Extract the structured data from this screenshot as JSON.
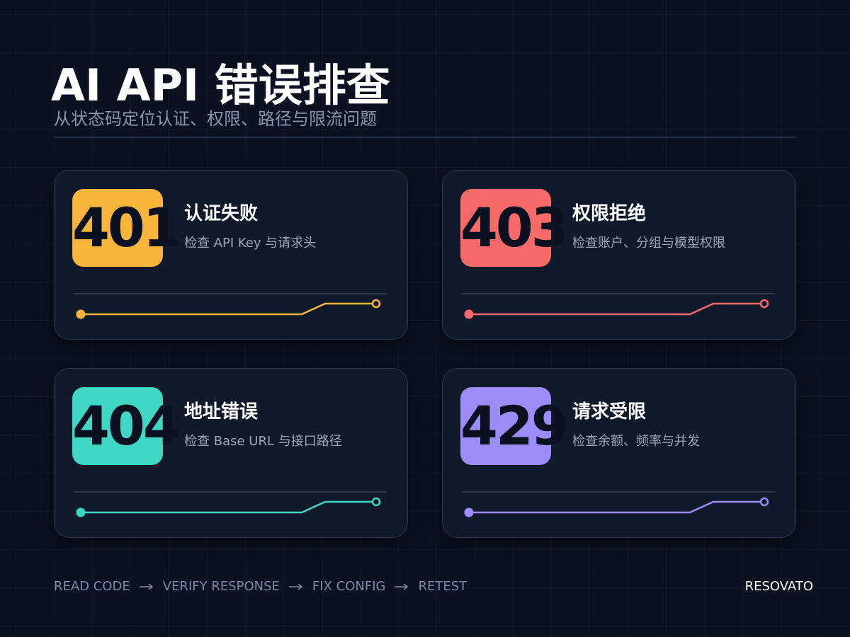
{
  "header": {
    "title": "AI API 错误排查",
    "subtitle": "从状态码定位认证、权限、路径与限流问题"
  },
  "cards": [
    {
      "code": "401",
      "title": "认证失败",
      "desc": "检查 API Key 与请求头",
      "color": "#f7b53c"
    },
    {
      "code": "403",
      "title": "权限拒绝",
      "desc": "检查账户、分组与模型权限",
      "color": "#f76a6a"
    },
    {
      "code": "404",
      "title": "地址错误",
      "desc": "检查 Base URL 与接口路径",
      "color": "#3fd6c4"
    },
    {
      "code": "429",
      "title": "请求受限",
      "desc": "检查余额、频率与并发",
      "color": "#9b8cf7"
    }
  ],
  "footer": {
    "steps": [
      "READ CODE",
      "VERIFY RESPONSE",
      "FIX CONFIG",
      "RETEST"
    ],
    "brand": "RESOVATO"
  }
}
